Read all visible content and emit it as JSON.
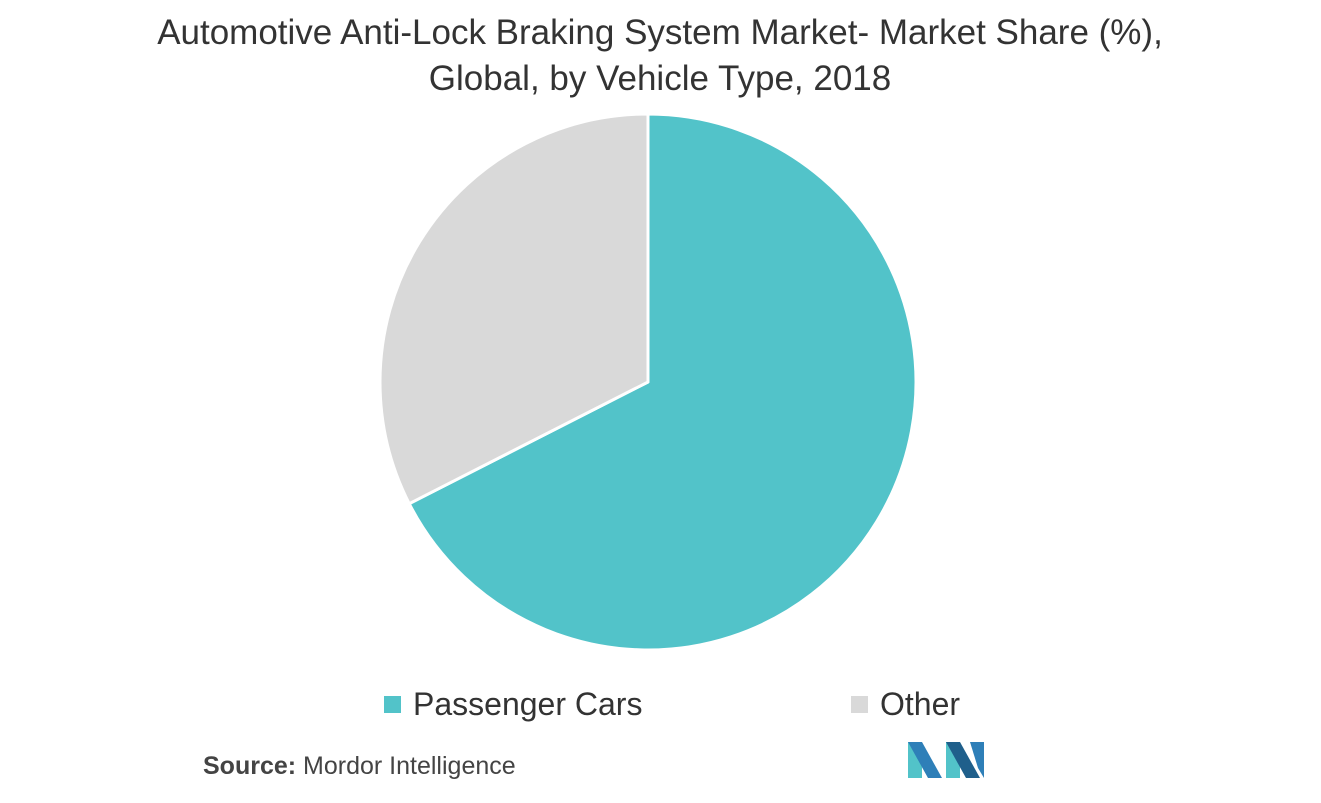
{
  "chart_data": {
    "type": "pie",
    "title": "Automotive Anti-Lock Braking System Market- Market Share (%), Global, by Vehicle Type, 2018",
    "slices": [
      {
        "label": "Passenger Cars",
        "value": 67.5,
        "color": "#52C3C9"
      },
      {
        "label": "Other",
        "value": 32.5,
        "color": "#D9D9D9"
      }
    ],
    "legend": [
      "Passenger Cars",
      "Other"
    ],
    "legend_placement": "bottom",
    "start_angle": "12 o'clock",
    "direction": "clockwise"
  },
  "source": {
    "label": "Source:",
    "text": "Mordor Intelligence"
  },
  "logo": {
    "name": "mordor-intelligence-logo",
    "colors": [
      "#52C3C9",
      "#2E7FB8",
      "#1F5F8B"
    ]
  }
}
